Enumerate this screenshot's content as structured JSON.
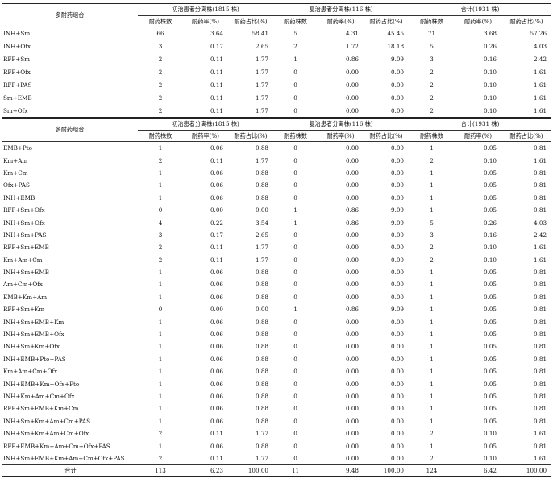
{
  "header": {
    "combo_label": "多耐药组合",
    "groups": [
      "初治患者分离株(1815 株)",
      "复治患者分离株(116 株)",
      "合计(1931 株)"
    ],
    "subcols": [
      "耐药株数",
      "耐药率(%)",
      "耐药占比(%)"
    ]
  },
  "table1": {
    "rows": [
      {
        "name": "INH+Sm",
        "v": [
          "66",
          "3.64",
          "58.41",
          "5",
          "4.31",
          "45.45",
          "71",
          "3.68",
          "57.26"
        ]
      },
      {
        "name": "INH+Ofx",
        "v": [
          "3",
          "0.17",
          "2.65",
          "2",
          "1.72",
          "18.18",
          "5",
          "0.26",
          "4.03"
        ]
      },
      {
        "name": "RFP+Sm",
        "v": [
          "2",
          "0.11",
          "1.77",
          "1",
          "0.86",
          "9.09",
          "3",
          "0.16",
          "2.42"
        ]
      },
      {
        "name": "RFP+Ofx",
        "v": [
          "2",
          "0.11",
          "1.77",
          "0",
          "0.00",
          "0.00",
          "2",
          "0.10",
          "1.61"
        ]
      },
      {
        "name": "RFP+PAS",
        "v": [
          "2",
          "0.11",
          "1.77",
          "0",
          "0.00",
          "0.00",
          "2",
          "0.10",
          "1.61"
        ]
      },
      {
        "name": "Sm+EMB",
        "v": [
          "2",
          "0.11",
          "1.77",
          "0",
          "0.00",
          "0.00",
          "2",
          "0.10",
          "1.61"
        ]
      },
      {
        "name": "Sm+Ofx",
        "v": [
          "2",
          "0.11",
          "1.77",
          "0",
          "0.00",
          "0.00",
          "2",
          "0.10",
          "1.61"
        ]
      }
    ]
  },
  "table2": {
    "rows": [
      {
        "name": "EMB+Pto",
        "v": [
          "1",
          "0.06",
          "0.88",
          "0",
          "0.00",
          "0.00",
          "1",
          "0.05",
          "0.81"
        ]
      },
      {
        "name": "Km+Am",
        "v": [
          "2",
          "0.11",
          "1.77",
          "0",
          "0.00",
          "0.00",
          "2",
          "0.10",
          "1.61"
        ]
      },
      {
        "name": "Km+Cm",
        "v": [
          "1",
          "0.06",
          "0.88",
          "0",
          "0.00",
          "0.00",
          "1",
          "0.05",
          "0.81"
        ]
      },
      {
        "name": "Ofx+PAS",
        "v": [
          "1",
          "0.06",
          "0.88",
          "0",
          "0.00",
          "0.00",
          "1",
          "0.05",
          "0.81"
        ]
      },
      {
        "name": "INH+EMB",
        "v": [
          "1",
          "0.06",
          "0.88",
          "0",
          "0.00",
          "0.00",
          "1",
          "0.05",
          "0.81"
        ]
      },
      {
        "name": "RFP+Sm+Ofx",
        "v": [
          "0",
          "0.00",
          "0.00",
          "1",
          "0.86",
          "9.09",
          "1",
          "0.05",
          "0.81"
        ]
      },
      {
        "name": "INH+Sm+Ofx",
        "v": [
          "4",
          "0.22",
          "3.54",
          "1",
          "0.86",
          "9.09",
          "5",
          "0.26",
          "4.03"
        ]
      },
      {
        "name": "INH+Sm+PAS",
        "v": [
          "3",
          "0.17",
          "2.65",
          "0",
          "0.00",
          "0.00",
          "3",
          "0.16",
          "2.42"
        ]
      },
      {
        "name": "RFP+Sm+EMB",
        "v": [
          "2",
          "0.11",
          "1.77",
          "0",
          "0.00",
          "0.00",
          "2",
          "0.10",
          "1.61"
        ]
      },
      {
        "name": "Km+Am+Cm",
        "v": [
          "2",
          "0.11",
          "1.77",
          "0",
          "0.00",
          "0.00",
          "2",
          "0.10",
          "1.61"
        ]
      },
      {
        "name": "INH+Sm+EMB",
        "v": [
          "1",
          "0.06",
          "0.88",
          "0",
          "0.00",
          "0.00",
          "1",
          "0.05",
          "0.81"
        ]
      },
      {
        "name": "Am+Cm+Ofx",
        "v": [
          "1",
          "0.06",
          "0.88",
          "0",
          "0.00",
          "0.00",
          "1",
          "0.05",
          "0.81"
        ]
      },
      {
        "name": "EMB+Km+Am",
        "v": [
          "1",
          "0.06",
          "0.88",
          "0",
          "0.00",
          "0.00",
          "1",
          "0.05",
          "0.81"
        ]
      },
      {
        "name": "RFP+Sm+Km",
        "v": [
          "0",
          "0.00",
          "0.00",
          "1",
          "0.86",
          "9.09",
          "1",
          "0.05",
          "0.81"
        ]
      },
      {
        "name": "INH+Sm+EMB+Km",
        "v": [
          "1",
          "0.06",
          "0.88",
          "0",
          "0.00",
          "0.00",
          "1",
          "0.05",
          "0.81"
        ]
      },
      {
        "name": "INH+Sm+EMB+Ofx",
        "v": [
          "1",
          "0.06",
          "0.88",
          "0",
          "0.00",
          "0.00",
          "1",
          "0.05",
          "0.81"
        ]
      },
      {
        "name": "INH+Sm+Km+Ofx",
        "v": [
          "1",
          "0.06",
          "0.88",
          "0",
          "0.00",
          "0.00",
          "1",
          "0.05",
          "0.81"
        ]
      },
      {
        "name": "INH+EMB+Pto+PAS",
        "v": [
          "1",
          "0.06",
          "0.88",
          "0",
          "0.00",
          "0.00",
          "1",
          "0.05",
          "0.81"
        ]
      },
      {
        "name": "Km+Am+Cm+Ofx",
        "v": [
          "1",
          "0.06",
          "0.88",
          "0",
          "0.00",
          "0.00",
          "1",
          "0.05",
          "0.81"
        ]
      },
      {
        "name": "INH+EMB+Km+Ofx+Pto",
        "v": [
          "1",
          "0.06",
          "0.88",
          "0",
          "0.00",
          "0.00",
          "1",
          "0.05",
          "0.81"
        ]
      },
      {
        "name": "INH+Km+Am+Cm+Ofx",
        "v": [
          "1",
          "0.06",
          "0.88",
          "0",
          "0.00",
          "0.00",
          "1",
          "0.05",
          "0.81"
        ]
      },
      {
        "name": "RFP+Sm+EMB+Km+Cm",
        "v": [
          "1",
          "0.06",
          "0.88",
          "0",
          "0.00",
          "0.00",
          "1",
          "0.05",
          "0.81"
        ]
      },
      {
        "name": "INH+Sm+Km+Am+Cm+PAS",
        "v": [
          "1",
          "0.06",
          "0.88",
          "0",
          "0.00",
          "0.00",
          "1",
          "0.05",
          "0.81"
        ]
      },
      {
        "name": "INH+Sm+Km+Am+Cm+Ofx",
        "v": [
          "2",
          "0.11",
          "1.77",
          "0",
          "0.00",
          "0.00",
          "2",
          "0.10",
          "1.61"
        ]
      },
      {
        "name": "RFP+EMB+Km+Am+Cm+Ofx+PAS",
        "v": [
          "1",
          "0.06",
          "0.88",
          "0",
          "0.00",
          "0.00",
          "1",
          "0.05",
          "0.81"
        ]
      },
      {
        "name": "INH+Sm+EMB+Km+Am+Cm+Ofx+PAS",
        "v": [
          "2",
          "0.11",
          "1.77",
          "0",
          "0.00",
          "0.00",
          "2",
          "0.10",
          "1.61"
        ]
      }
    ],
    "total": {
      "name": "合计",
      "v": [
        "113",
        "6.23",
        "100.00",
        "11",
        "9.48",
        "100.00",
        "124",
        "6.42",
        "100.00"
      ]
    }
  }
}
